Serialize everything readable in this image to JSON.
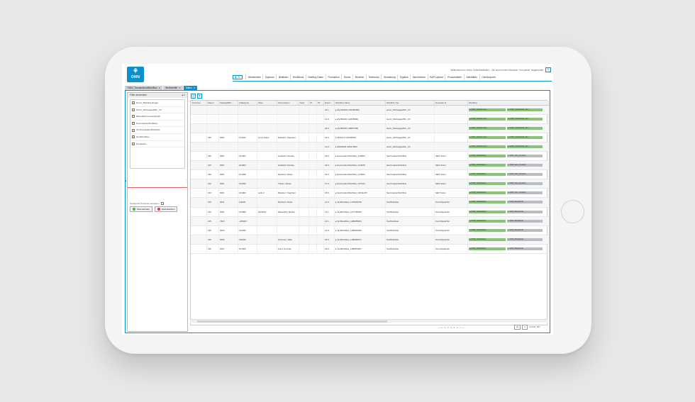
{
  "header": {
    "logo_text": "OMN",
    "welcome": "Willkommen im Heinz OnlineMediaNet – Sie sind mit dem Benutzer \"mm.admin\" angemeldet",
    "menu": [
      "Werbemittel",
      "Digimow",
      "Bildlisten",
      "Workflows",
      "Briefing-Daten",
      "Produktion",
      "Suche",
      "Berichte",
      "Textmodul",
      "Verwaltung",
      "Digiflow",
      "Nachrichten",
      "BAP-Upload",
      "Produktdaten",
      "Aktivitäten",
      "Clientexporte"
    ]
  },
  "tabs": [
    {
      "label": "TOBS_TransactionalWorkflow",
      "active": false
    },
    {
      "label": "Werbemittel",
      "active": false
    },
    {
      "label": "Status",
      "active": true
    }
  ],
  "filter": {
    "title": "Filter anwenden",
    "items": [
      {
        "label": "Heinz_Bildrebriefingeit",
        "checked": true
      },
      {
        "label": "Heinz_WorkpageWFL_V3",
        "checked": true
      },
      {
        "label": "ManualDocumentUpload",
        "checked": true
      },
      {
        "label": "SeoCreationWorkflow",
        "checked": true
      },
      {
        "label": "TextTranslationWorkflow",
        "checked": true
      },
      {
        "label": "TextWorkflow",
        "checked": true
      },
      {
        "label": "Produktion",
        "checked": true
      }
    ],
    "show_started": "Gestoppte Prozesse anzeigen",
    "apply_label": "Übernehmen",
    "reset_label": "Zurücksetzen"
  },
  "grid": {
    "columns": [
      "Vorschau",
      "Saison",
      "KatalogWffio...",
      "Artikelseite",
      "Shop",
      "Stromnamen",
      "Stylz",
      "FT",
      "ST",
      "Erstel...",
      "Workflow Name",
      "Workflow Typ",
      "Gestartet at",
      "Workflow"
    ],
    "rows": [
      {
        "saison": "",
        "katalog": "",
        "artikel": "",
        "shop": "",
        "name": "",
        "erstel": "22.1...",
        "wfname": "AS-192946 (123456280)",
        "wftyp": "Heinz_WorkpageWFL_V3",
        "started": "",
        "wf1": "AS01_Datenimport",
        "wf2": "AS02_Überarbeite_Re...",
        "wf1c": "green",
        "wf2c": "green"
      },
      {
        "saison": "",
        "katalog": "",
        "artikel": "",
        "shop": "",
        "name": "",
        "erstel": "12.0...",
        "wfname": "AS-800001 (12345682)",
        "wftyp": "Heinz_WorkpageWFL_V3",
        "started": "",
        "wf1": "AS01_Datenimport",
        "wf2": "AS02_Überarbeite_Re...",
        "wf1c": "green",
        "wf2c": "green"
      },
      {
        "saison": "",
        "katalog": "",
        "artikel": "",
        "shop": "",
        "name": "",
        "erstel": "18.0...",
        "wfname": "AS-800001 (45087155)",
        "wftyp": "Heinz_WorkpageWFL_V3",
        "started": "",
        "wf1": "AS01_Datenimport",
        "wf2": "AS02_Überarbeite_Re...",
        "wf1c": "green",
        "wf2c": "green"
      },
      {
        "saison": "130",
        "katalog": "0001",
        "artikel": "101102",
        "shop": "Linux Teleni",
        "name": "Riebelerr, Stephanl",
        "erstel": "18.0...",
        "wfname": "6610172 (21009516)",
        "wftyp": "Heinz_WorkpageWFL_V3",
        "started": "",
        "wf1": "AS01_Datenimport",
        "wf2": "AS02_Überarbeite_Re...",
        "wf1c": "green",
        "wf2c": "green"
      },
      {
        "saison": "",
        "katalog": "",
        "artikel": "",
        "shop": "",
        "name": "",
        "erstel": "12.0...",
        "wfname": "84000245 (18917256)",
        "wftyp": "Heinz_WorkpageWFL_V3",
        "started": "",
        "wf1": "AS01_Datenimport",
        "wf2": "AS02_Überarbeite_Re...",
        "wf1c": "green",
        "wf2c": "green"
      },
      {
        "saison": "130",
        "katalog": "0001",
        "artikel": "101004",
        "shop": "",
        "name": "Heddrich, Monika",
        "erstel": "24.0...",
        "wfname": "SeoCreationWorkflow_129693...",
        "wftyp": "SeoCreationWorkflow",
        "started": "SEO Texter",
        "wf1": "0015_Initialisation",
        "wf2": "0020_Seo_Creation",
        "wf1c": "green",
        "wf2c": "gray"
      },
      {
        "saison": "130",
        "katalog": "0001",
        "artikel": "101004",
        "shop": "",
        "name": "Heddrich, Monika",
        "erstel": "24.0...",
        "wfname": "SeoCreationWorkflow_124005...",
        "wftyp": "SeoCreationWorkflow",
        "started": "SEO Texter",
        "wf1": "0015_Initialisation",
        "wf2": "0020_Seo_Creation",
        "wf1c": "green",
        "wf2c": "gray"
      },
      {
        "saison": "130",
        "katalog": "0001",
        "artikel": "101209",
        "shop": "",
        "name": "Reichert, Nicole",
        "erstel": "23.0...",
        "wfname": "SeoCreationWorkflow_124662...",
        "wftyp": "SeoCreationWorkflow",
        "started": "SEO Texter",
        "wf1": "0015_Initialisation",
        "wf2": "0020_Seo_Creation",
        "wf1c": "green",
        "wf2c": "gray"
      },
      {
        "saison": "130",
        "katalog": "0001",
        "artikel": "101030",
        "shop": "",
        "name": "Thelen, Nicole",
        "erstel": "17.0...",
        "wfname": "SeoCreationWorkflow_127022...",
        "wftyp": "SeoCreationWorkflow",
        "started": "SEO Texter",
        "wf1": "0015_Initialisation",
        "wf2": "0020_Seo_Creation",
        "wf1c": "green",
        "wf2c": "gray"
      },
      {
        "saison": "130",
        "katalog": "0001",
        "artikel": "101002",
        "shop": "seife 2",
        "name": "Riebelerr, Stephanl",
        "erstel": "18.0...",
        "wfname": "SeoCreationWorkflow_02011225",
        "wftyp": "SeoCreationWorkflow",
        "started": "SEO Texter",
        "wf1": "0015_Initialisation",
        "wf2": "0020_Seo_Creation",
        "wf1c": "green",
        "wf2c": "gray"
      },
      {
        "saison": "130",
        "katalog": "0011",
        "artikel": "111026",
        "shop": "",
        "name": "Reichert, Nicole",
        "erstel": "12.0...",
        "wfname": "TextWorkflow_1175236756",
        "wftyp": "TextWorkflow",
        "started": "Text-Dispatcher",
        "wf1": "0015_Initialisation",
        "wf2": "0020_Dispatcher",
        "wf1c": "green",
        "wf2c": "gray"
      },
      {
        "saison": "130",
        "katalog": "0001",
        "artikel": "101056",
        "shop": "2222222",
        "name": "Westerkirk, Barbel",
        "erstel": "12.1...",
        "wfname": "TextWorkflow_1177780040",
        "wftyp": "TextWorkflow",
        "started": "Text-Dispatcher",
        "wf1": "0015_Initialisation",
        "wf2": "0020_Dispatcher",
        "wf1c": "green",
        "wf2c": "gray"
      },
      {
        "saison": "135",
        "katalog": "7623",
        "artikel": "-200003",
        "shop": "",
        "name": "",
        "erstel": "21.1...",
        "wfname": "TextWorkflow_1180085291",
        "wftyp": "TextWorkflow",
        "started": "Text-Dispatcher",
        "wf1": "0015_Initialisation",
        "wf2": "0020_Dispatcher",
        "wf1c": "green",
        "wf2c": "gray"
      },
      {
        "saison": "130",
        "katalog": "0004",
        "artikel": "104032",
        "shop": "",
        "name": "",
        "erstel": "14.0...",
        "wfname": "TextWorkflow_1180092006",
        "wftyp": "TextWorkflow",
        "started": "Text-Dispatcher",
        "wf1": "0015_Initialisation",
        "wf2": "0020_Dispatcher",
        "wf1c": "green",
        "wf2c": "gray"
      },
      {
        "saison": "130",
        "katalog": "0050",
        "artikel": "160016",
        "shop": "",
        "name": "Grimmen, Silke",
        "erstel": "18.0...",
        "wfname": "TextWorkflow_1180650071",
        "wftyp": "TextWorkflow",
        "started": "Text-Dispatcher",
        "wf1": "0015_Initialisation",
        "wf2": "0020_Dispatcher",
        "wf1c": "green",
        "wf2c": "gray"
      },
      {
        "saison": "130",
        "katalog": "0007",
        "artikel": "107020",
        "shop": "",
        "name": "Kurzi, Dominik",
        "erstel": "18.0...",
        "wfname": "TextWorkflow_1180651807",
        "wftyp": "TextWorkflow",
        "started": "Text-Dispatcher",
        "wf1": "0015_Initialisation",
        "wf2": "0020_Dispatcher",
        "wf1c": "green",
        "wf2c": "gray"
      }
    ]
  },
  "pager": {
    "pages": "« ‹ 1 · 2 · 3 · 4 · 5 · 6 · 7 › »",
    "page_size": "20",
    "total": "Anzahl: 397"
  },
  "colors": {
    "accent": "#0a8fd0",
    "green": "#8ac27a",
    "gray": "#b9bcc0"
  }
}
